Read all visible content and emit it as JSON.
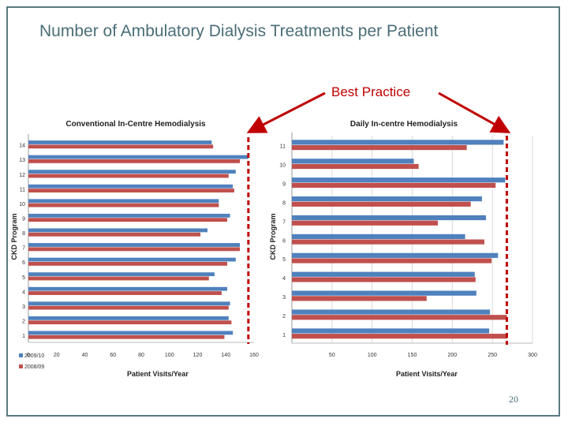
{
  "slide": {
    "title": "Number of Ambulatory Dialysis Treatments per Patient",
    "callout": "Best Practice",
    "page_number": "20"
  },
  "colors": {
    "series_2009": "#4f81bd",
    "series_2008": "#c0504d",
    "best_practice": "#c00000",
    "arrow": "#c00000"
  },
  "chart_data": [
    {
      "type": "bar",
      "orientation": "horizontal",
      "title": "Conventional In-Centre Hemodialysis",
      "xlabel": "Patient Visits/Year",
      "ylabel": "CKD Program",
      "xlim": [
        0,
        160
      ],
      "xticks": [
        "0",
        "20",
        "40",
        "60",
        "80",
        "100",
        "120",
        "140",
        "160"
      ],
      "categories": [
        "1",
        "2",
        "3",
        "4",
        "5",
        "6",
        "7",
        "8",
        "9",
        "10",
        "11",
        "12",
        "13",
        "14"
      ],
      "series": [
        {
          "name": "2009/10",
          "values": [
            145,
            142,
            143,
            141,
            132,
            147,
            150,
            127,
            143,
            135,
            145,
            147,
            156,
            130
          ]
        },
        {
          "name": "2008/09",
          "values": [
            139,
            144,
            142,
            137,
            128,
            141,
            150,
            122,
            141,
            135,
            146,
            142,
            150,
            131
          ]
        }
      ],
      "best_practice_line": 156,
      "legend_position": "bottom-left",
      "grid": false
    },
    {
      "type": "bar",
      "orientation": "horizontal",
      "title": "Daily In-centre Hemodialysis",
      "xlabel": "Patient Visits/Year",
      "ylabel": "CKD Program",
      "xlim": [
        0,
        300
      ],
      "xticks": [
        "50",
        "100",
        "150",
        "200",
        "250",
        "300"
      ],
      "categories": [
        "1",
        "2",
        "3",
        "4",
        "5",
        "6",
        "7",
        "8",
        "9",
        "10",
        "11"
      ],
      "series": [
        {
          "name": "2009/10",
          "values": [
            246,
            247,
            230,
            228,
            257,
            216,
            242,
            237,
            266,
            152,
            264
          ]
        },
        {
          "name": "2008/09",
          "values": [
            269,
            268,
            168,
            229,
            249,
            240,
            182,
            223,
            254,
            158,
            218
          ]
        }
      ],
      "best_practice_line": 268,
      "legend_position": "none",
      "grid": true
    }
  ]
}
